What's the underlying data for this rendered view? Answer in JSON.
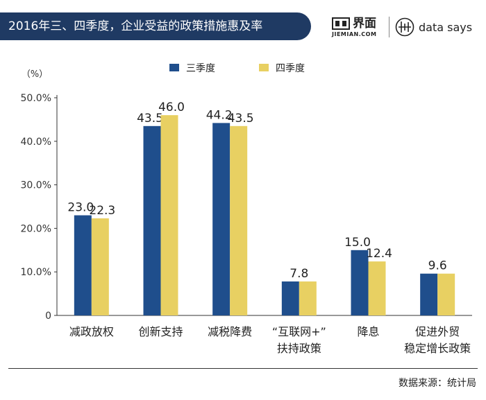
{
  "header": {
    "title": "2016年三、四季度，企业受益的政策措施惠及率",
    "brand_jiemian_name": "界面",
    "brand_jiemian_domain": "JIEMIAN.COM",
    "brand_datasays": "data says",
    "icons": [
      "jiemian-logo-icon",
      "datasays-logo-icon"
    ]
  },
  "footer": {
    "source": "数据来源：统计局"
  },
  "colors": {
    "title_bar": "#1f3a63",
    "series_q3": "#1f4e8c",
    "series_q4": "#e8d062"
  },
  "chart_data": {
    "type": "bar",
    "y_unit_label": "（%）",
    "ylim": [
      0,
      50
    ],
    "yticks": [
      0,
      10,
      20,
      30,
      40,
      50
    ],
    "ytick_labels": [
      "0",
      "10.0%",
      "20.0%",
      "30.0%",
      "40.0%",
      "50.0%"
    ],
    "grid": false,
    "legend_position": "top-center",
    "categories": [
      [
        "减政放权"
      ],
      [
        "创新支持"
      ],
      [
        "减税降费"
      ],
      [
        "“互联网+”",
        "扶持政策"
      ],
      [
        "降息"
      ],
      [
        "促进外贸",
        "稳定增长政策"
      ]
    ],
    "series": [
      {
        "name": "三季度",
        "color": "#1f4e8c",
        "values": [
          23.0,
          43.5,
          44.2,
          7.8,
          15.0,
          9.6
        ],
        "labels": [
          "23.0",
          "43.5",
          "44.2",
          "7.8",
          "15.0",
          "9.6"
        ]
      },
      {
        "name": "四季度",
        "color": "#e8d062",
        "values": [
          22.3,
          46.0,
          43.5,
          7.8,
          12.4,
          9.6
        ],
        "labels": [
          "22.3",
          "46.0",
          "43.5",
          "",
          "12.4",
          ""
        ]
      }
    ]
  }
}
